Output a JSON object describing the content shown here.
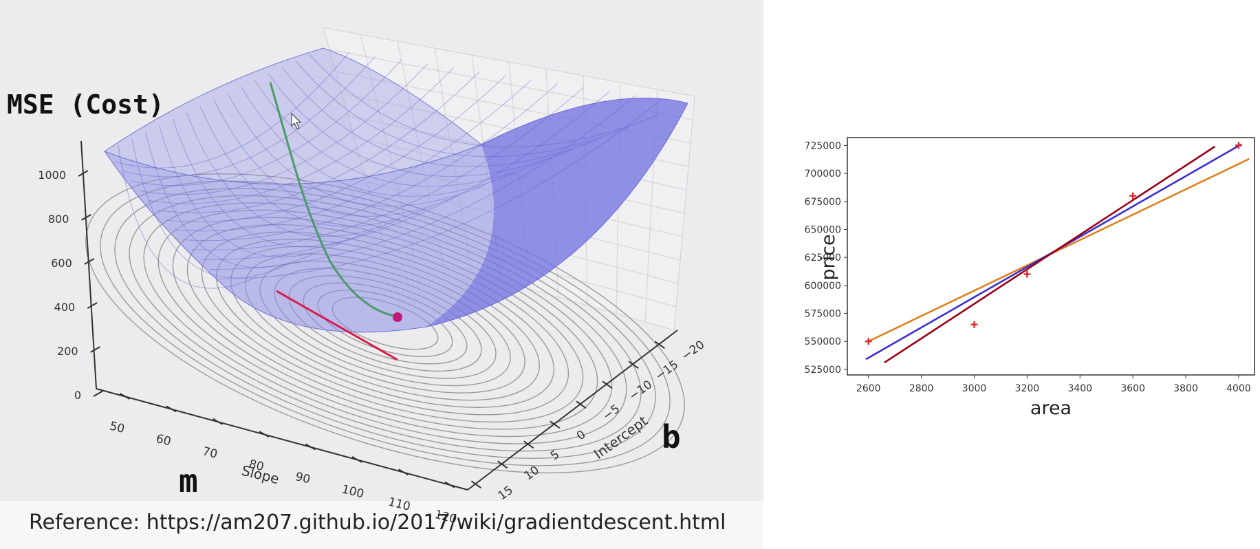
{
  "overlay": {
    "cost_label": "MSE (Cost)",
    "m_label": "m",
    "b_label": "b",
    "reference": "Reference: https://am207.github.io/2017/wiki/gradientdescent.html"
  },
  "colors": {
    "surface": "#8f8fe6",
    "descent_path": "#4a9a6a",
    "minimum_point": "#c2187a",
    "red_line": "#d8194a",
    "line_orange": "#e07f1e",
    "line_blue": "#3a2fd0",
    "line_darkred": "#9b0014",
    "points": "#e0262a"
  },
  "chart_data": [
    {
      "type": "surface3d",
      "zlabel": "",
      "xlabel": "Slope",
      "ylabel": "Intercept",
      "z_ticks": [
        "0",
        "200",
        "400",
        "600",
        "800",
        "1000"
      ],
      "x_ticks": [
        "50",
        "60",
        "70",
        "80",
        "90",
        "100",
        "110",
        "120"
      ],
      "y_ticks": [
        "15",
        "10",
        "5",
        "0",
        "−5",
        "−10",
        "−15",
        "−20"
      ],
      "z_range": [
        0,
        1000
      ],
      "x_range": [
        45,
        120
      ],
      "y_range": [
        -20,
        15
      ],
      "grid": true
    },
    {
      "type": "scatter",
      "xlabel": "area",
      "ylabel": "price",
      "xlim": [
        2520,
        4060
      ],
      "ylim": [
        520000,
        732000
      ],
      "x_ticks": [
        2600,
        2800,
        3000,
        3200,
        3400,
        3600,
        3800,
        4000
      ],
      "y_ticks": [
        525000,
        550000,
        575000,
        600000,
        625000,
        650000,
        675000,
        700000,
        725000
      ],
      "points": [
        {
          "x": 2600,
          "y": 550000
        },
        {
          "x": 3000,
          "y": 565000
        },
        {
          "x": 3200,
          "y": 610000
        },
        {
          "x": 3600,
          "y": 680000
        },
        {
          "x": 4000,
          "y": 725000
        }
      ],
      "lines": [
        {
          "color_key": "line_orange",
          "x": [
            2600,
            4040
          ],
          "y": [
            550000,
            713000
          ]
        },
        {
          "color_key": "line_blue",
          "x": [
            2590,
            4010
          ],
          "y": [
            534000,
            726000
          ]
        },
        {
          "color_key": "line_darkred",
          "x": [
            2660,
            3910
          ],
          "y": [
            531000,
            724000
          ]
        }
      ]
    }
  ]
}
